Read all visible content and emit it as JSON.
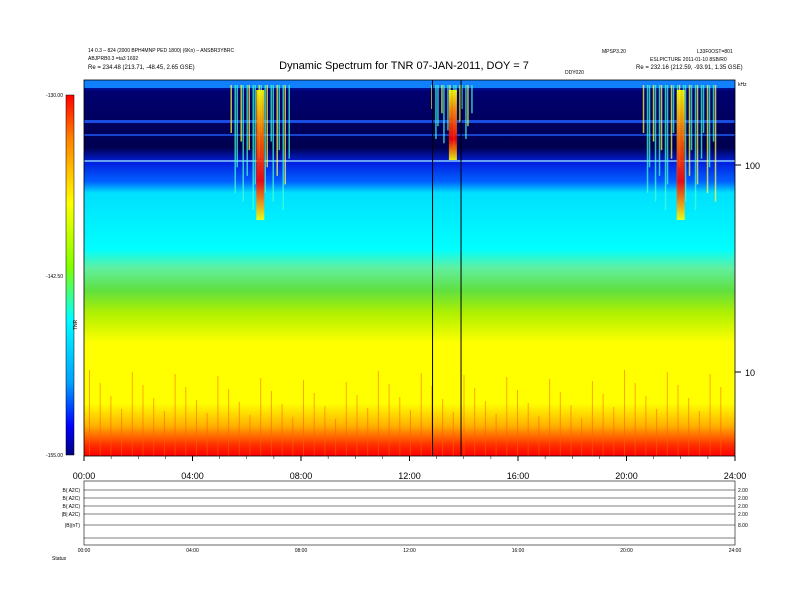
{
  "chart_data": {
    "type": "heatmap",
    "title": "Dynamic Spectrum for TNR 07-JAN-2011, DOY = 7",
    "header_left": [
      "14 0.3 – 824 (2000 BPH4MNP PED 1800) (6Kn) – ANSBR3YBRC",
      "ABJPRB0.3 =ta3 1692",
      "Re =    234.48 (213.71, -48.45, 2.65 GSE)"
    ],
    "header_right": [
      "MPSP3.20",
      "ESLPICTURE 2011-01-10 8SB/R0",
      "Re =    232.16 (212.59, -93.91, 1.35 GSE)"
    ],
    "header_right_top": "L33F0OST=801",
    "header_mid_small": "DDY020",
    "colorbar": {
      "label": "TNR",
      "ticks": [
        "-130.00",
        "-142.50",
        "-155.00"
      ],
      "range": [
        -155.0,
        -130.0
      ],
      "colors": [
        "#000080",
        "#0000ff",
        "#00c8ff",
        "#00ffff",
        "#7fff00",
        "#ffff00",
        "#ff8000",
        "#ff0000"
      ]
    },
    "x_axis": {
      "range": [
        "00:00",
        "24:00"
      ],
      "ticks": [
        "00:00",
        "04:00",
        "08:00",
        "12:00",
        "16:00",
        "20:00",
        "24:00"
      ]
    },
    "y_axis": {
      "scale": "log",
      "ticks": [
        "100",
        "10"
      ],
      "unit_label": "kHz"
    },
    "markers_hours": [
      12.85,
      13.9
    ],
    "bursts": [
      {
        "hour_start": 5.4,
        "hour_end": 7.6,
        "strength": "strong"
      },
      {
        "hour_start": 20.6,
        "hour_end": 23.4,
        "strength": "strong"
      },
      {
        "hour_start": 12.8,
        "hour_end": 14.4,
        "strength": "moderate"
      }
    ],
    "spectrum_bands": [
      {
        "level": "high_freq_dark",
        "color": "#000060"
      },
      {
        "level": "upper",
        "color": "#0030ff"
      },
      {
        "level": "cyan",
        "color": "#00ffff"
      },
      {
        "level": "green",
        "color": "#40e060"
      },
      {
        "level": "yellow",
        "color": "#ffff00"
      },
      {
        "level": "low_freq_red",
        "color": "#ff2000"
      }
    ]
  },
  "bottom_panels": {
    "labels": [
      "B( A2C)",
      "B( A2C)",
      "B( A2C)",
      "|B| A2C)",
      "|B|(nT)",
      ""
    ],
    "right_labels": [
      "2.00",
      "2.00",
      "2.00",
      "2.00",
      "8.00",
      ""
    ],
    "x_ticks": [
      "00:00",
      "04:00",
      "08:00",
      "12:00",
      "16:00",
      "20:00",
      "24:00"
    ],
    "footer_left": "Status"
  }
}
